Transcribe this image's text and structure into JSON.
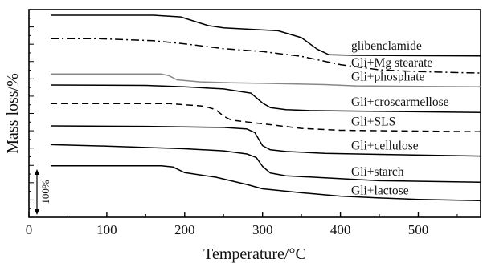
{
  "chart_data": {
    "type": "line",
    "title": "",
    "xlabel": "Temperature/°C",
    "ylabel": "Mass loss/%",
    "xlim": [
      0,
      580
    ],
    "xticks": [
      0,
      100,
      200,
      300,
      400,
      500
    ],
    "ylim": [
      0,
      100
    ],
    "scale_bar": {
      "label": "100%",
      "value": 100
    },
    "grid": false,
    "legend": "inline-right",
    "series": [
      {
        "name": "glibenclamide",
        "color": "#000000",
        "dash": "solid",
        "x": [
          28,
          160,
          195,
          230,
          250,
          320,
          350,
          370,
          385,
          420,
          580
        ],
        "y": [
          97.3,
          97.3,
          96.5,
          92.3,
          91.2,
          89.8,
          86.5,
          81.0,
          78.3,
          78.0,
          77.7
        ]
      },
      {
        "name": "Gli+Mg stearate",
        "color": "#000000",
        "dash": "dashdot",
        "x": [
          28,
          90,
          160,
          200,
          250,
          300,
          350,
          400,
          450,
          500,
          550,
          580
        ],
        "y": [
          86.0,
          86.0,
          85.0,
          83.5,
          81.2,
          79.8,
          77.5,
          73.5,
          71.0,
          70.2,
          69.7,
          69.5
        ]
      },
      {
        "name": "Gli+phosphate",
        "color": "#888888",
        "dash": "solid",
        "x": [
          28,
          170,
          180,
          190,
          220,
          260,
          300,
          380,
          420,
          580
        ],
        "y": [
          69.0,
          69.0,
          68.2,
          66.2,
          65.2,
          64.8,
          64.5,
          63.9,
          63.3,
          62.8
        ]
      },
      {
        "name": "Gli+croscarmellose",
        "color": "#000000",
        "dash": "solid",
        "x": [
          28,
          150,
          200,
          250,
          285,
          300,
          310,
          330,
          360,
          400,
          580
        ],
        "y": [
          63.7,
          63.5,
          62.8,
          61.8,
          59.8,
          55.0,
          52.8,
          51.8,
          51.4,
          51.2,
          50.5
        ]
      },
      {
        "name": "Gli+SLS",
        "color": "#000000",
        "dash": "dashed",
        "x": [
          28,
          180,
          225,
          240,
          250,
          260,
          290,
          310,
          350,
          400,
          580
        ],
        "y": [
          54.7,
          54.7,
          53.5,
          51.8,
          48.7,
          46.8,
          45.5,
          44.6,
          42.8,
          41.9,
          41.2
        ]
      },
      {
        "name": "Gli+cellulose",
        "color": "#000000",
        "dash": "solid",
        "x": [
          28,
          150,
          250,
          280,
          290,
          300,
          310,
          330,
          380,
          450,
          580
        ],
        "y": [
          44.0,
          43.8,
          43.3,
          42.5,
          40.8,
          34.5,
          32.5,
          31.7,
          30.8,
          30.3,
          29.5
        ]
      },
      {
        "name": "Gli+starch",
        "color": "#000000",
        "dash": "solid",
        "x": [
          28,
          100,
          200,
          250,
          280,
          292,
          300,
          310,
          330,
          380,
          450,
          580
        ],
        "y": [
          35.0,
          34.3,
          33.0,
          32.0,
          30.5,
          28.8,
          24.5,
          21.3,
          20.0,
          19.0,
          17.6,
          16.9
        ]
      },
      {
        "name": "Gli+lactose",
        "color": "#000000",
        "dash": "solid",
        "x": [
          28,
          170,
          185,
          200,
          240,
          280,
          300,
          350,
          400,
          450,
          500,
          580
        ],
        "y": [
          24.8,
          24.8,
          24.2,
          21.5,
          19.3,
          15.8,
          13.7,
          11.8,
          10.2,
          9.3,
          8.6,
          8.0
        ]
      }
    ]
  }
}
